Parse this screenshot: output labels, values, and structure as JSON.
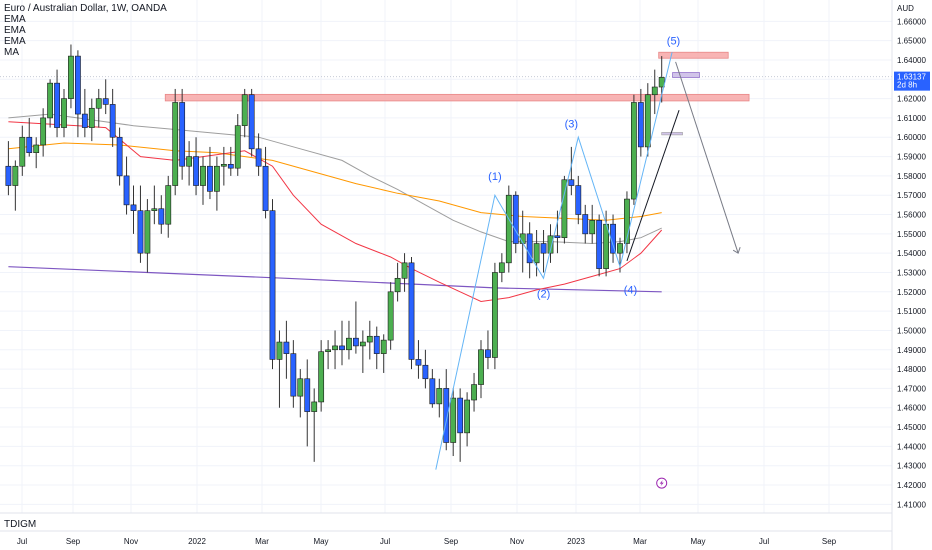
{
  "header": {
    "title": "Euro / Australian Dollar, 1W, OANDA",
    "indicators": [
      "EMA",
      "EMA",
      "EMA",
      "MA"
    ]
  },
  "footer": {
    "brand": "TDIGM"
  },
  "colors": {
    "up": "#4caf50",
    "down": "#2962ff",
    "ema_fast": "#f23645",
    "ema_mid": "#ff9800",
    "ema_slow": "#9e9e9e",
    "ma": "#7e57c2",
    "zone": "#f7a8a8",
    "zone_border": "#e57373",
    "wave": "#64b5f6",
    "wave_label": "#2962ff"
  },
  "chart_data": {
    "type": "candlestick",
    "title": "Euro / Australian Dollar, 1W, OANDA",
    "currency": "AUD",
    "ylim": [
      1.405,
      1.67
    ],
    "y_ticks": [
      "1.41000",
      "1.42000",
      "1.43000",
      "1.44000",
      "1.45000",
      "1.46000",
      "1.47000",
      "1.48000",
      "1.49000",
      "1.50000",
      "1.51000",
      "1.52000",
      "1.53000",
      "1.54000",
      "1.55000",
      "1.56000",
      "1.57000",
      "1.58000",
      "1.59000",
      "1.60000",
      "1.61000",
      "1.62000",
      "1.63000",
      "1.64000",
      "1.65000",
      "1.66000"
    ],
    "x_ticks": [
      "Jul",
      "Sep",
      "Nov",
      "2022",
      "Mar",
      "May",
      "Jul",
      "Sep",
      "Nov",
      "2023",
      "Mar",
      "May",
      "Jul",
      "Sep"
    ],
    "last_price": "1.63137",
    "countdown": "2d 8h",
    "candles": [
      [
        1.585,
        1.598,
        1.57,
        1.575
      ],
      [
        1.575,
        1.588,
        1.562,
        1.585
      ],
      [
        1.585,
        1.606,
        1.58,
        1.6
      ],
      [
        1.6,
        1.61,
        1.59,
        1.592
      ],
      [
        1.592,
        1.6,
        1.584,
        1.596
      ],
      [
        1.596,
        1.615,
        1.59,
        1.61
      ],
      [
        1.61,
        1.63,
        1.605,
        1.628
      ],
      [
        1.628,
        1.635,
        1.6,
        1.605
      ],
      [
        1.605,
        1.625,
        1.6,
        1.62
      ],
      [
        1.62,
        1.648,
        1.615,
        1.642
      ],
      [
        1.642,
        1.645,
        1.6,
        1.612
      ],
      [
        1.612,
        1.625,
        1.6,
        1.605
      ],
      [
        1.605,
        1.62,
        1.598,
        1.615
      ],
      [
        1.615,
        1.625,
        1.605,
        1.62
      ],
      [
        1.62,
        1.63,
        1.612,
        1.617
      ],
      [
        1.617,
        1.625,
        1.595,
        1.6
      ],
      [
        1.6,
        1.605,
        1.575,
        1.58
      ],
      [
        1.58,
        1.59,
        1.56,
        1.565
      ],
      [
        1.565,
        1.575,
        1.55,
        1.562
      ],
      [
        1.562,
        1.575,
        1.535,
        1.54
      ],
      [
        1.54,
        1.568,
        1.53,
        1.562
      ],
      [
        1.562,
        1.575,
        1.555,
        1.563
      ],
      [
        1.563,
        1.57,
        1.55,
        1.555
      ],
      [
        1.555,
        1.58,
        1.548,
        1.575
      ],
      [
        1.575,
        1.625,
        1.57,
        1.618
      ],
      [
        1.618,
        1.625,
        1.578,
        1.585
      ],
      [
        1.585,
        1.598,
        1.575,
        1.59
      ],
      [
        1.59,
        1.6,
        1.57,
        1.575
      ],
      [
        1.575,
        1.59,
        1.565,
        1.585
      ],
      [
        1.585,
        1.595,
        1.568,
        1.572
      ],
      [
        1.572,
        1.59,
        1.562,
        1.585
      ],
      [
        1.585,
        1.595,
        1.575,
        1.586
      ],
      [
        1.586,
        1.595,
        1.58,
        1.584
      ],
      [
        1.584,
        1.612,
        1.58,
        1.606
      ],
      [
        1.606,
        1.625,
        1.6,
        1.622
      ],
      [
        1.622,
        1.625,
        1.59,
        1.594
      ],
      [
        1.594,
        1.602,
        1.58,
        1.585
      ],
      [
        1.585,
        1.595,
        1.558,
        1.562
      ],
      [
        1.562,
        1.568,
        1.48,
        1.485
      ],
      [
        1.485,
        1.5,
        1.46,
        1.494
      ],
      [
        1.494,
        1.505,
        1.475,
        1.488
      ],
      [
        1.488,
        1.495,
        1.46,
        1.466
      ],
      [
        1.466,
        1.48,
        1.455,
        1.475
      ],
      [
        1.475,
        1.485,
        1.44,
        1.458
      ],
      [
        1.458,
        1.47,
        1.432,
        1.463
      ],
      [
        1.463,
        1.495,
        1.458,
        1.489
      ],
      [
        1.489,
        1.495,
        1.48,
        1.49
      ],
      [
        1.49,
        1.5,
        1.48,
        1.492
      ],
      [
        1.492,
        1.505,
        1.482,
        1.49
      ],
      [
        1.49,
        1.505,
        1.485,
        1.496
      ],
      [
        1.496,
        1.515,
        1.488,
        1.492
      ],
      [
        1.492,
        1.5,
        1.478,
        1.494
      ],
      [
        1.494,
        1.505,
        1.485,
        1.497
      ],
      [
        1.497,
        1.502,
        1.48,
        1.488
      ],
      [
        1.488,
        1.498,
        1.478,
        1.495
      ],
      [
        1.495,
        1.525,
        1.49,
        1.52
      ],
      [
        1.52,
        1.535,
        1.515,
        1.527
      ],
      [
        1.527,
        1.54,
        1.52,
        1.535
      ],
      [
        1.535,
        1.538,
        1.48,
        1.485
      ],
      [
        1.485,
        1.495,
        1.475,
        1.482
      ],
      [
        1.482,
        1.49,
        1.47,
        1.475
      ],
      [
        1.475,
        1.48,
        1.46,
        1.462
      ],
      [
        1.462,
        1.475,
        1.455,
        1.47
      ],
      [
        1.47,
        1.48,
        1.438,
        1.442
      ],
      [
        1.442,
        1.47,
        1.435,
        1.465
      ],
      [
        1.465,
        1.47,
        1.432,
        1.447
      ],
      [
        1.447,
        1.468,
        1.44,
        1.464
      ],
      [
        1.464,
        1.478,
        1.458,
        1.472
      ],
      [
        1.472,
        1.495,
        1.465,
        1.49
      ],
      [
        1.49,
        1.5,
        1.48,
        1.486
      ],
      [
        1.486,
        1.535,
        1.48,
        1.53
      ],
      [
        1.53,
        1.54,
        1.525,
        1.535
      ],
      [
        1.535,
        1.575,
        1.53,
        1.57
      ],
      [
        1.57,
        1.572,
        1.54,
        1.545
      ],
      [
        1.545,
        1.562,
        1.53,
        1.55
      ],
      [
        1.55,
        1.556,
        1.527,
        1.535
      ],
      [
        1.535,
        1.552,
        1.528,
        1.545
      ],
      [
        1.545,
        1.552,
        1.53,
        1.54
      ],
      [
        1.54,
        1.555,
        1.535,
        1.549
      ],
      [
        1.549,
        1.562,
        1.54,
        1.548
      ],
      [
        1.548,
        1.58,
        1.545,
        1.578
      ],
      [
        1.578,
        1.595,
        1.57,
        1.575
      ],
      [
        1.575,
        1.58,
        1.555,
        1.56
      ],
      [
        1.56,
        1.565,
        1.545,
        1.55
      ],
      [
        1.55,
        1.565,
        1.545,
        1.557
      ],
      [
        1.557,
        1.56,
        1.528,
        1.532
      ],
      [
        1.532,
        1.562,
        1.528,
        1.555
      ],
      [
        1.555,
        1.56,
        1.535,
        1.54
      ],
      [
        1.54,
        1.548,
        1.53,
        1.545
      ],
      [
        1.545,
        1.572,
        1.54,
        1.568
      ],
      [
        1.568,
        1.622,
        1.565,
        1.618
      ],
      [
        1.618,
        1.625,
        1.59,
        1.595
      ],
      [
        1.595,
        1.628,
        1.59,
        1.622
      ],
      [
        1.622,
        1.635,
        1.612,
        1.626
      ],
      [
        1.626,
        1.642,
        1.618,
        1.631
      ]
    ],
    "ema_fast": [
      [
        0,
        1.608
      ],
      [
        10,
        1.606
      ],
      [
        14,
        1.605
      ],
      [
        19,
        1.59
      ],
      [
        24,
        1.588
      ],
      [
        28,
        1.59
      ],
      [
        34,
        1.593
      ],
      [
        38,
        1.585
      ],
      [
        41,
        1.57
      ],
      [
        45,
        1.555
      ],
      [
        50,
        1.545
      ],
      [
        55,
        1.538
      ],
      [
        58,
        1.532
      ],
      [
        62,
        1.525
      ],
      [
        65,
        1.52
      ],
      [
        68,
        1.515
      ],
      [
        72,
        1.517
      ],
      [
        76,
        1.521
      ],
      [
        80,
        1.524
      ],
      [
        84,
        1.528
      ],
      [
        88,
        1.532
      ],
      [
        91,
        1.54
      ],
      [
        94,
        1.552
      ]
    ],
    "ema_mid": [
      [
        0,
        1.594
      ],
      [
        8,
        1.597
      ],
      [
        16,
        1.596
      ],
      [
        24,
        1.593
      ],
      [
        30,
        1.592
      ],
      [
        38,
        1.588
      ],
      [
        44,
        1.582
      ],
      [
        50,
        1.576
      ],
      [
        56,
        1.571
      ],
      [
        62,
        1.567
      ],
      [
        68,
        1.561
      ],
      [
        74,
        1.559
      ],
      [
        80,
        1.558
      ],
      [
        86,
        1.557
      ],
      [
        91,
        1.559
      ],
      [
        94,
        1.561
      ]
    ],
    "ema_slow": [
      [
        0,
        1.61
      ],
      [
        6,
        1.612
      ],
      [
        12,
        1.609
      ],
      [
        18,
        1.606
      ],
      [
        24,
        1.604
      ],
      [
        30,
        1.602
      ],
      [
        36,
        1.6
      ],
      [
        42,
        1.594
      ],
      [
        48,
        1.588
      ],
      [
        52,
        1.58
      ],
      [
        56,
        1.573
      ],
      [
        60,
        1.565
      ],
      [
        64,
        1.557
      ],
      [
        68,
        1.551
      ],
      [
        72,
        1.546
      ],
      [
        78,
        1.546
      ],
      [
        84,
        1.545
      ],
      [
        88,
        1.546
      ],
      [
        91,
        1.548
      ],
      [
        94,
        1.553
      ]
    ],
    "ma": [
      [
        0,
        1.533
      ],
      [
        40,
        1.527
      ],
      [
        70,
        1.522
      ],
      [
        94,
        1.52
      ]
    ],
    "zones": [
      {
        "from": 23,
        "to": 107,
        "top": 1.6222,
        "bottom": 1.6188
      },
      {
        "from": 94,
        "to": 104,
        "top": 1.644,
        "bottom": 1.6414
      }
    ],
    "marker_box": {
      "from": 96,
      "to": 99,
      "top": 1.6335,
      "bottom": 1.631
    },
    "small_line": {
      "from": 94,
      "to": 97,
      "value": 1.6025
    },
    "elliott_wave": [
      [
        61.5,
        1.428
      ],
      [
        70,
        1.57
      ],
      [
        77,
        1.527
      ],
      [
        82,
        1.6
      ],
      [
        88,
        1.533
      ],
      [
        95.5,
        1.644
      ]
    ],
    "wave_labels": [
      {
        "label": "(1)",
        "x": 70,
        "y": 1.578
      },
      {
        "label": "(2)",
        "x": 77,
        "y": 1.517
      },
      {
        "label": "(3)",
        "x": 81,
        "y": 1.605
      },
      {
        "label": "(4)",
        "x": 89.5,
        "y": 1.519
      },
      {
        "label": "(5)",
        "x": 95.7,
        "y": 1.648
      }
    ],
    "trendline": [
      [
        89,
        1.536
      ],
      [
        96.5,
        1.614
      ]
    ],
    "projection": [
      [
        96,
        1.639
      ],
      [
        105,
        1.54
      ]
    ]
  }
}
